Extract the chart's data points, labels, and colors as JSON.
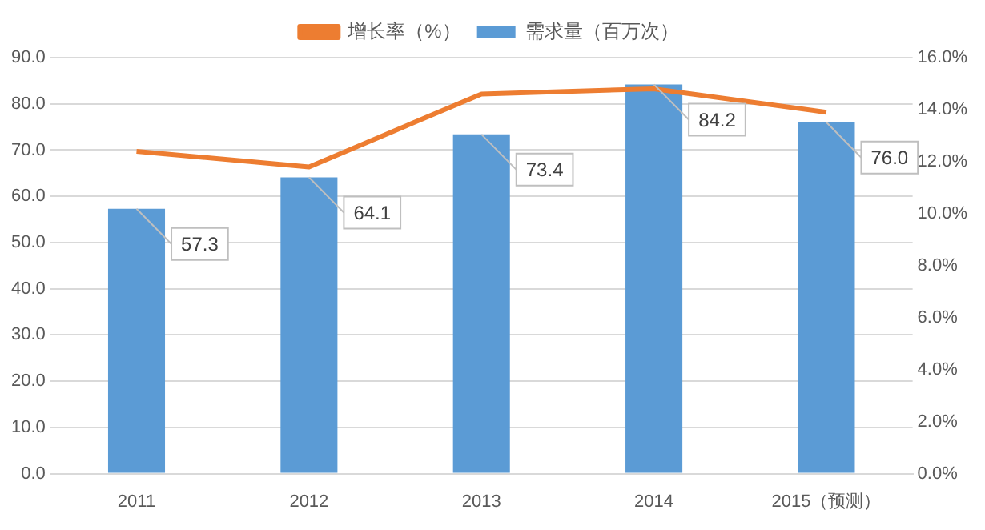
{
  "chart_data": {
    "type": "bar",
    "categories": [
      "2011",
      "2012",
      "2013",
      "2014",
      "2015（预测）"
    ],
    "series": [
      {
        "name": "需求量（百万次）",
        "color": "#5b9bd5",
        "values": [
          57.3,
          64.1,
          73.4,
          84.2,
          76.0
        ],
        "value_labels": [
          "57.3",
          "64.1",
          "73.4",
          "84.2",
          "76.0"
        ]
      },
      {
        "name": "增长率（%）",
        "type": "line",
        "axis": "y2",
        "color": "#ed7d31",
        "values": [
          12.4,
          11.8,
          14.6,
          14.8,
          13.9
        ],
        "marker": "none"
      }
    ],
    "ylim": [
      0,
      90
    ],
    "yticks": [
      {
        "value": 0,
        "label": "0.0"
      },
      {
        "value": 10,
        "label": "10.0"
      },
      {
        "value": 20,
        "label": "20.0"
      },
      {
        "value": 30,
        "label": "30.0"
      },
      {
        "value": 40,
        "label": "40.0"
      },
      {
        "value": 50,
        "label": "50.0"
      },
      {
        "value": 60,
        "label": "60.0"
      },
      {
        "value": 70,
        "label": "70.0"
      },
      {
        "value": 80,
        "label": "80.0"
      },
      {
        "value": 90,
        "label": "90.0"
      }
    ],
    "y2lim": [
      0,
      16
    ],
    "y2ticks": [
      {
        "value": 0,
        "label": "0.0%"
      },
      {
        "value": 2,
        "label": "2.0%"
      },
      {
        "value": 4,
        "label": "4.0%"
      },
      {
        "value": 6,
        "label": "6.0%"
      },
      {
        "value": 8,
        "label": "8.0%"
      },
      {
        "value": 10,
        "label": "10.0%"
      },
      {
        "value": 12,
        "label": "12.0%"
      },
      {
        "value": 14,
        "label": "14.0%"
      },
      {
        "value": 16,
        "label": "16.0%"
      }
    ],
    "grid": "y",
    "legend": "top"
  }
}
